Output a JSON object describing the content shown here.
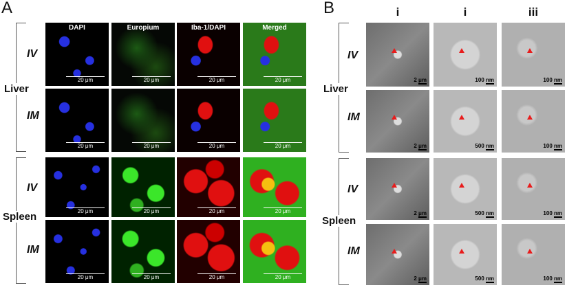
{
  "panel_a": {
    "letter": "A",
    "channels": [
      "DAPI",
      "Europium",
      "Iba-1/DAPI",
      "Merged"
    ],
    "tissues": [
      "Liver",
      "Spleen"
    ],
    "routes": [
      "IV",
      "IM",
      "IV",
      "IM"
    ],
    "scale_bar": "20 μm"
  },
  "panel_b": {
    "letter": "B",
    "columns": [
      "i",
      "i",
      "iii"
    ],
    "tissues": [
      "Liver",
      "Spleen"
    ],
    "routes": [
      "IV",
      "IM",
      "IV",
      "IM"
    ],
    "scale_bars": [
      [
        "2 μm",
        "100 nm",
        "100 nm"
      ],
      [
        "2 μm",
        "500 nm",
        "100 nm"
      ],
      [
        "2 μm",
        "500 nm",
        "100 nm"
      ],
      [
        "2 μm",
        "500 nm",
        "100 nm"
      ]
    ]
  },
  "colors": {
    "dapi": "#2630e0",
    "europium": "#3be62a",
    "iba1": "#e01010",
    "arrow": "#e81c1c"
  }
}
